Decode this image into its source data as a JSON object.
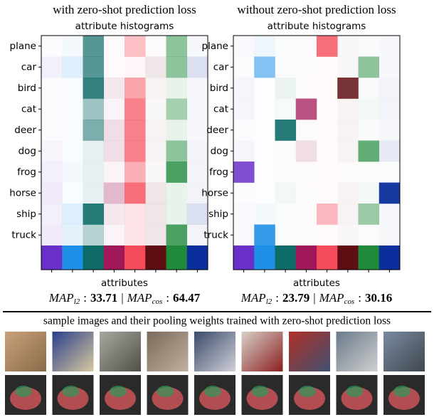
{
  "panels": [
    {
      "heading": "with zero-shot prediction loss",
      "subtitle": "attribute histograms",
      "x_label": "attributes",
      "metric": {
        "name1": "MAP",
        "sub1": "l2",
        "sep": ":",
        "value1": 33.71,
        "divider": "|",
        "name2": "MAP",
        "sub2": "cos",
        "value2": 64.47
      },
      "intensities": [
        [
          0.02,
          0.05,
          0.7,
          0.02,
          0.35,
          0.02,
          0.5,
          0.03
        ],
        [
          0.08,
          0.15,
          0.7,
          0.02,
          0.05,
          0.1,
          0.5,
          0.15
        ],
        [
          0.02,
          0.03,
          0.85,
          0.1,
          0.5,
          0.05,
          0.1,
          0.03
        ],
        [
          0.02,
          0.03,
          0.4,
          0.05,
          0.7,
          0.03,
          0.4,
          0.03
        ],
        [
          0.02,
          0.03,
          0.55,
          0.15,
          0.7,
          0.05,
          0.1,
          0.03
        ],
        [
          0.05,
          0.03,
          0.1,
          0.15,
          0.7,
          0.05,
          0.5,
          0.05
        ],
        [
          0.08,
          0.05,
          0.1,
          0.05,
          0.45,
          0.03,
          0.8,
          0.05
        ],
        [
          0.1,
          0.03,
          0.1,
          0.3,
          0.8,
          0.1,
          0.1,
          0.05
        ],
        [
          0.08,
          0.15,
          0.9,
          0.1,
          0.15,
          0.1,
          0.1,
          0.15
        ],
        [
          0.1,
          0.12,
          0.3,
          0.05,
          0.15,
          0.1,
          0.8,
          0.05
        ]
      ]
    },
    {
      "heading": "without zero-shot prediction loss",
      "subtitle": "attribute histograms",
      "x_label": "attributes",
      "metric": {
        "name1": "MAP",
        "sub1": "l2",
        "sep": ":",
        "value1": 23.79,
        "divider": "|",
        "name2": "MAP",
        "sub2": "cos",
        "value2": 30.16
      },
      "intensities": [
        [
          0.03,
          0.08,
          0.02,
          0.02,
          0.8,
          0.03,
          0.03,
          0.03
        ],
        [
          0.02,
          0.55,
          0.02,
          0.02,
          0.02,
          0.03,
          0.5,
          0.03
        ],
        [
          0.05,
          0.02,
          0.08,
          0.02,
          0.03,
          0.85,
          0.03,
          0.05
        ],
        [
          0.05,
          0.02,
          0.03,
          0.75,
          0.02,
          0.05,
          0.05,
          0.05
        ],
        [
          0.02,
          0.02,
          0.9,
          0.02,
          0.02,
          0.05,
          0.03,
          0.03
        ],
        [
          0.05,
          0.02,
          0.02,
          0.15,
          0.02,
          0.05,
          0.7,
          0.1
        ],
        [
          0.85,
          0.02,
          0.02,
          0.02,
          0.02,
          0.02,
          0.02,
          0.02
        ],
        [
          0.02,
          0.02,
          0.05,
          0.02,
          0.02,
          0.05,
          0.05,
          0.95
        ],
        [
          0.03,
          0.05,
          0.02,
          0.02,
          0.4,
          0.05,
          0.45,
          0.03
        ],
        [
          0.03,
          0.9,
          0.02,
          0.02,
          0.02,
          0.03,
          0.02,
          0.03
        ]
      ]
    }
  ],
  "classes": [
    "plane",
    "car",
    "bird",
    "cat",
    "deer",
    "dog",
    "frog",
    "horse",
    "ship",
    "truck"
  ],
  "attribute_colors": [
    "#6a2fc8",
    "#1e90e8",
    "#0e6b68",
    "#a0185a",
    "#f54b5a",
    "#5e0e12",
    "#1e8a3a",
    "#0a2f9c"
  ],
  "caption": "sample images and their pooling weights trained with zero-shot prediction loss"
}
